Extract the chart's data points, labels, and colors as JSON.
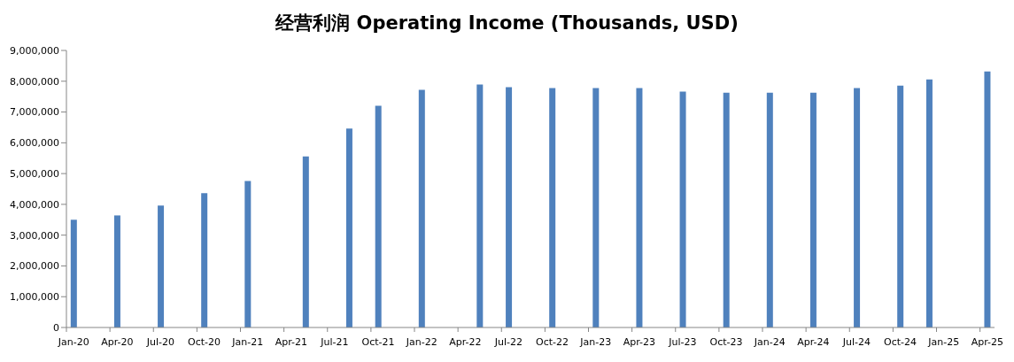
{
  "chart_data": {
    "type": "bar",
    "title": "经营利润 Operating Income (Thousands, USD)",
    "x": [
      "2020-01",
      "2020-04",
      "2020-07",
      "2020-10",
      "2021-01",
      "2021-05",
      "2021-08",
      "2021-10",
      "2022-01",
      "2022-05",
      "2022-07",
      "2022-10",
      "2023-01",
      "2023-04",
      "2023-07",
      "2023-10",
      "2024-01",
      "2024-04",
      "2024-07",
      "2024-10",
      "2024-12",
      "2025-04"
    ],
    "values": [
      3500000,
      3640000,
      3960000,
      4360000,
      4760000,
      5560000,
      6460000,
      7200000,
      7720000,
      7890000,
      7810000,
      7780000,
      7780000,
      7780000,
      7660000,
      7630000,
      7630000,
      7630000,
      7780000,
      7860000,
      8060000,
      8320000
    ],
    "color": "#4f81bd",
    "xlim": [
      "2020-01",
      "2025-04"
    ],
    "xticks": [
      {
        "value": "2020-01",
        "label": "Jan-20"
      },
      {
        "value": "2020-04",
        "label": "Apr-20"
      },
      {
        "value": "2020-07",
        "label": "Jul-20"
      },
      {
        "value": "2020-10",
        "label": "Oct-20"
      },
      {
        "value": "2021-01",
        "label": "Jan-21"
      },
      {
        "value": "2021-04",
        "label": "Apr-21"
      },
      {
        "value": "2021-07",
        "label": "Jul-21"
      },
      {
        "value": "2021-10",
        "label": "Oct-21"
      },
      {
        "value": "2022-01",
        "label": "Jan-22"
      },
      {
        "value": "2022-04",
        "label": "Apr-22"
      },
      {
        "value": "2022-07",
        "label": "Jul-22"
      },
      {
        "value": "2022-10",
        "label": "Oct-22"
      },
      {
        "value": "2023-01",
        "label": "Jan-23"
      },
      {
        "value": "2023-04",
        "label": "Apr-23"
      },
      {
        "value": "2023-07",
        "label": "Jul-23"
      },
      {
        "value": "2023-10",
        "label": "Oct-23"
      },
      {
        "value": "2024-01",
        "label": "Jan-24"
      },
      {
        "value": "2024-04",
        "label": "Apr-24"
      },
      {
        "value": "2024-07",
        "label": "Jul-24"
      },
      {
        "value": "2024-10",
        "label": "Oct-24"
      },
      {
        "value": "2025-01",
        "label": "Jan-25"
      },
      {
        "value": "2025-04",
        "label": "Apr-25"
      }
    ],
    "ylim": [
      0,
      9000000
    ],
    "yticks": [
      0,
      {
        "value": 1000000,
        "label": "1,000,000"
      },
      {
        "value": 2000000,
        "label": "2,000,000"
      },
      {
        "value": 3000000,
        "label": "3,000,000"
      },
      {
        "value": 4000000,
        "label": "4,000,000"
      },
      {
        "value": 5000000,
        "label": "5,000,000"
      },
      {
        "value": 6000000,
        "label": "6,000,000"
      },
      {
        "value": 7000000,
        "label": "7,000,000"
      },
      {
        "value": 8000000,
        "label": "8,000,000"
      },
      {
        "value": 9000000,
        "label": "9,000,000"
      }
    ],
    "grid": false,
    "legend": false
  }
}
